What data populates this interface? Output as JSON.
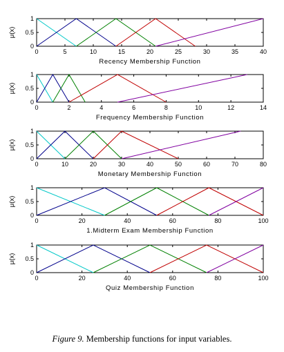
{
  "caption": {
    "label": "Figure 9.",
    "text": "Membership functions for input variables."
  },
  "colors": {
    "series": [
      "#00c8c8",
      "#00008b",
      "#008000",
      "#c00000",
      "#8000a0"
    ]
  },
  "chart_data": [
    {
      "type": "line",
      "xlabel": "Recency Membership Function",
      "ylabel": "μ(x)",
      "xlim": [
        0,
        40
      ],
      "ylim": [
        0,
        1
      ],
      "xticks": [
        0,
        5,
        10,
        15,
        20,
        25,
        30,
        35,
        40
      ],
      "yticks": [
        0,
        0.5,
        1
      ],
      "series": [
        {
          "x": [
            0,
            7
          ],
          "y": [
            1,
            0
          ]
        },
        {
          "x": [
            0,
            7,
            14
          ],
          "y": [
            0,
            1,
            0
          ]
        },
        {
          "x": [
            7,
            14,
            21
          ],
          "y": [
            0,
            1,
            0
          ]
        },
        {
          "x": [
            14,
            21,
            28
          ],
          "y": [
            0,
            1,
            0
          ]
        },
        {
          "x": [
            21,
            40
          ],
          "y": [
            0,
            1
          ]
        }
      ]
    },
    {
      "type": "line",
      "xlabel": "Frequency Membership Function",
      "ylabel": "μ(x)",
      "xlim": [
        0,
        14
      ],
      "ylim": [
        0,
        1
      ],
      "xticks": [
        0,
        2,
        4,
        6,
        8,
        10,
        12,
        14
      ],
      "yticks": [
        0,
        0.5,
        1
      ],
      "series": [
        {
          "x": [
            0,
            1
          ],
          "y": [
            1,
            0
          ]
        },
        {
          "x": [
            0,
            1,
            2
          ],
          "y": [
            0,
            1,
            0
          ]
        },
        {
          "x": [
            1,
            2,
            3
          ],
          "y": [
            0,
            1,
            0
          ]
        },
        {
          "x": [
            2,
            5,
            8
          ],
          "y": [
            0,
            1,
            0
          ]
        },
        {
          "x": [
            5,
            13
          ],
          "y": [
            0,
            1
          ]
        }
      ]
    },
    {
      "type": "line",
      "xlabel": "Monetary Membership Function",
      "ylabel": "μ(x)",
      "xlim": [
        0,
        80
      ],
      "ylim": [
        0,
        1
      ],
      "xticks": [
        0,
        10,
        20,
        30,
        40,
        50,
        60,
        70,
        80
      ],
      "yticks": [
        0,
        0.5,
        1
      ],
      "series": [
        {
          "x": [
            0,
            10
          ],
          "y": [
            1,
            0
          ]
        },
        {
          "x": [
            0,
            10,
            20
          ],
          "y": [
            0,
            1,
            0
          ]
        },
        {
          "x": [
            10,
            20,
            30
          ],
          "y": [
            0,
            1,
            0
          ]
        },
        {
          "x": [
            20,
            30,
            50
          ],
          "y": [
            0,
            1,
            0
          ]
        },
        {
          "x": [
            30,
            72
          ],
          "y": [
            0,
            1
          ]
        }
      ]
    },
    {
      "type": "line",
      "xlabel": "1.Midterm Exam Membership Function",
      "ylabel": "μ(x)",
      "xlim": [
        0,
        100
      ],
      "ylim": [
        0,
        1
      ],
      "xticks": [
        0,
        20,
        40,
        60,
        80,
        100
      ],
      "yticks": [
        0,
        0.5,
        1
      ],
      "series": [
        {
          "x": [
            0,
            30
          ],
          "y": [
            1,
            0
          ]
        },
        {
          "x": [
            0,
            30,
            53
          ],
          "y": [
            0,
            1,
            0
          ]
        },
        {
          "x": [
            30,
            53,
            76
          ],
          "y": [
            0,
            1,
            0
          ]
        },
        {
          "x": [
            53,
            76,
            100
          ],
          "y": [
            0,
            1,
            0
          ]
        },
        {
          "x": [
            76,
            100
          ],
          "y": [
            0,
            1
          ]
        }
      ]
    },
    {
      "type": "line",
      "xlabel": "Quiz Membership Function",
      "ylabel": "μ(x)",
      "xlim": [
        0,
        100
      ],
      "ylim": [
        0,
        1
      ],
      "xticks": [
        0,
        20,
        40,
        60,
        80,
        100
      ],
      "yticks": [
        0,
        0.5,
        1
      ],
      "series": [
        {
          "x": [
            0,
            25
          ],
          "y": [
            1,
            0
          ]
        },
        {
          "x": [
            0,
            25,
            50
          ],
          "y": [
            0,
            1,
            0
          ]
        },
        {
          "x": [
            25,
            50,
            75
          ],
          "y": [
            0,
            1,
            0
          ]
        },
        {
          "x": [
            50,
            75,
            100
          ],
          "y": [
            0,
            1,
            0
          ]
        },
        {
          "x": [
            75,
            100
          ],
          "y": [
            0,
            1
          ]
        }
      ]
    }
  ]
}
